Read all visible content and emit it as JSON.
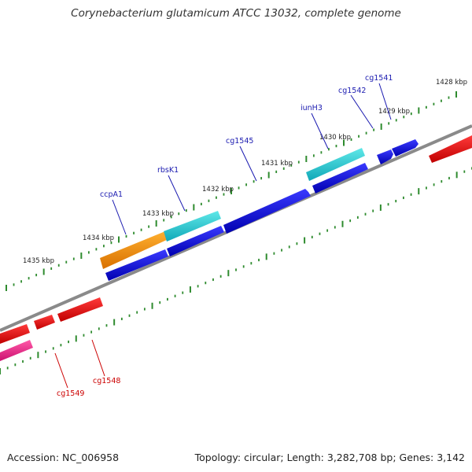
{
  "title": "Corynebacterium glutamicum ATCC 13032, complete genome",
  "footer": {
    "accession": "Accession: NC_006958",
    "summary": "Topology: circular; Length: 3,282,708 bp; Genes: 3,142"
  },
  "colors": {
    "backbone": "#8a8a8a",
    "tick": "#2e8b2e",
    "plus_gene": "#1a1ae0",
    "minus_gene": "#ee1c24",
    "highlight_cyan": "#1fc8c8",
    "highlight_orange": "#ef8e0c",
    "highlight_pink": "#ee2d8a",
    "label_plus": "#1a1ab0",
    "label_minus": "#cc0000"
  },
  "scale_ticks": [
    {
      "label": "1428 kbp",
      "kbp": 1428
    },
    {
      "label": "1429 kbp",
      "kbp": 1429
    },
    {
      "label": "1430 kbp",
      "kbp": 1430
    },
    {
      "label": "1431 kbp",
      "kbp": 1431
    },
    {
      "label": "1432 kbp",
      "kbp": 1432
    },
    {
      "label": "1433 kbp",
      "kbp": 1433
    },
    {
      "label": "1434 kbp",
      "kbp": 1434
    },
    {
      "label": "1435 kbp",
      "kbp": 1435
    }
  ],
  "gene_labels": {
    "plus": [
      "cg1541",
      "cg1542",
      "iunH3",
      "cg1545",
      "rbsK1",
      "ccpA1"
    ],
    "minus": [
      "cg1548",
      "cg1549"
    ]
  }
}
